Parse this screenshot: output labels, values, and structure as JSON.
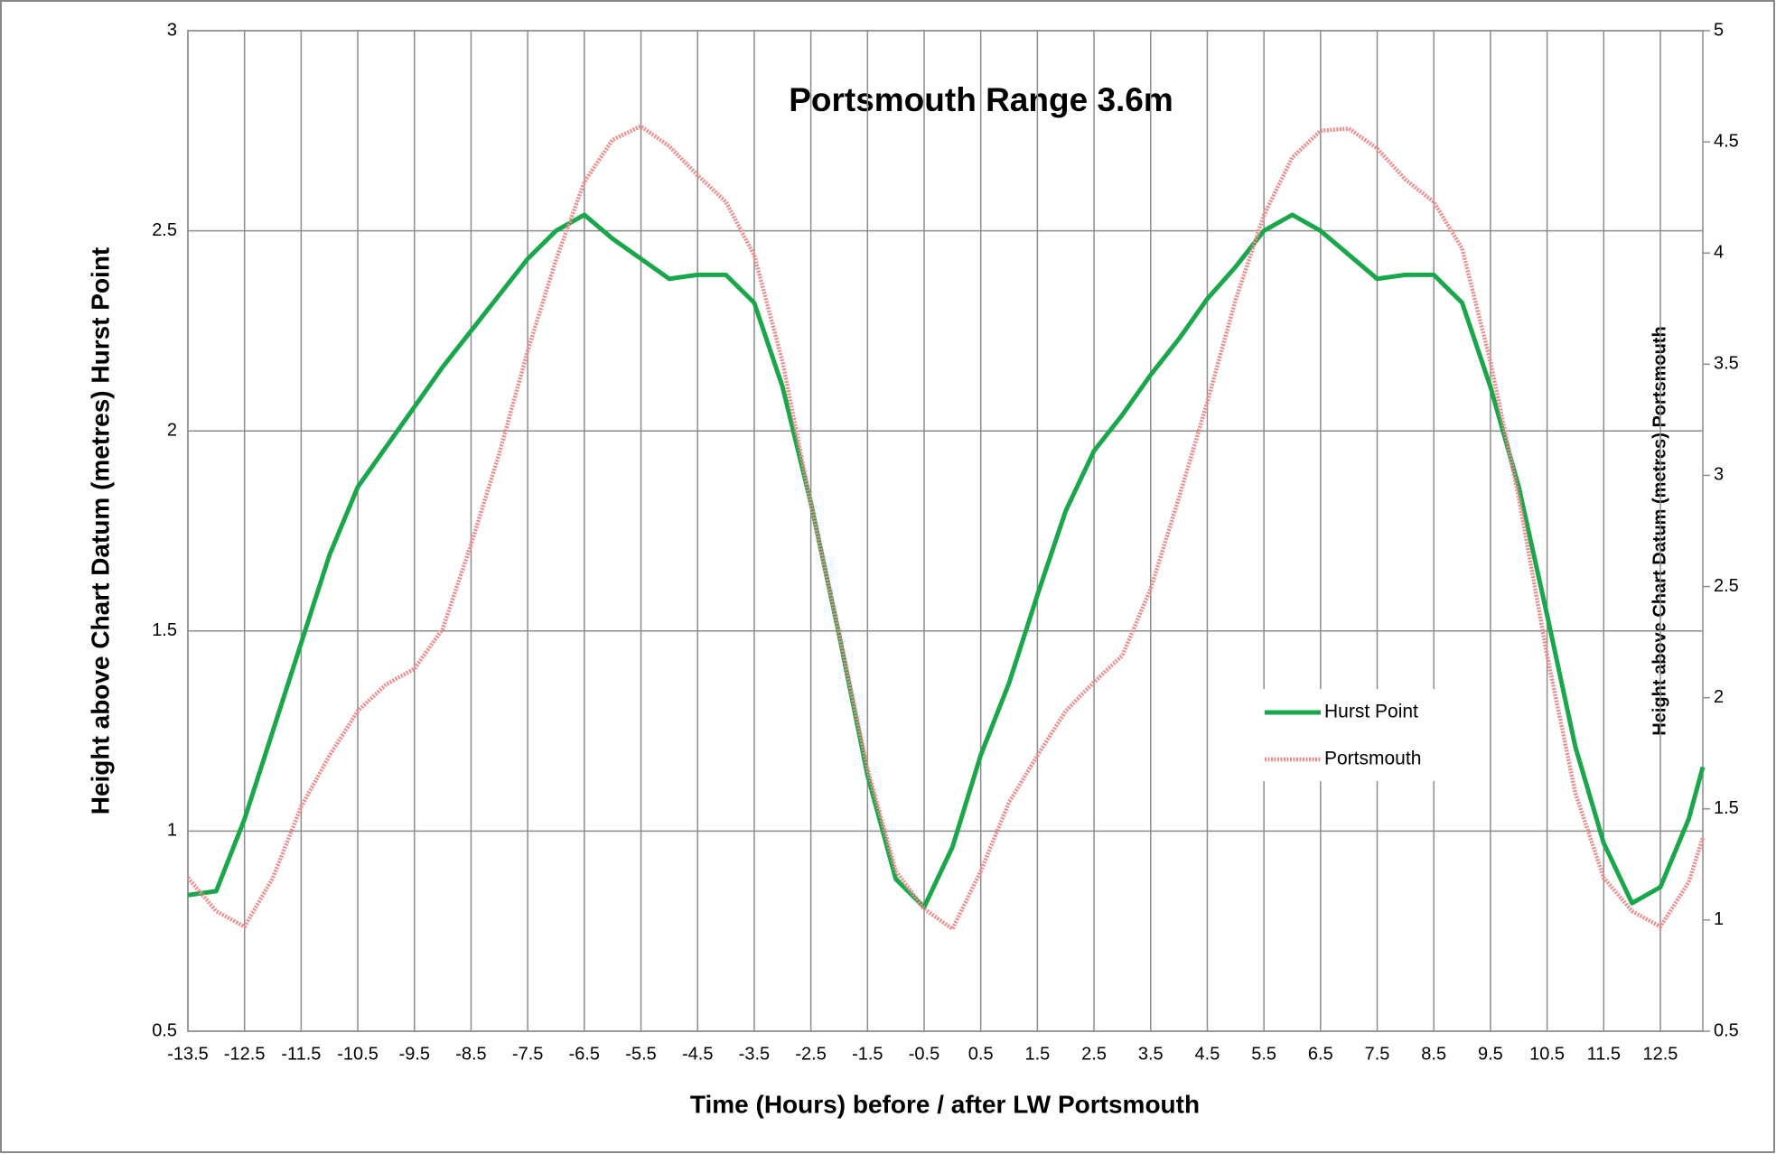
{
  "chart_data": {
    "type": "line",
    "title": "Portsmouth Range 3.6m",
    "x_label": "Time (Hours) before / after LW Portsmouth",
    "y_label": "Height above Chart Datum (metres) Hurst Point",
    "y2_label": "Height above Chart Datum (metres) Portsmouth",
    "x": [
      -13.5,
      -13,
      -12.5,
      -12,
      -11.5,
      -11,
      -10.5,
      -10,
      -9.5,
      -9,
      -8.5,
      -8,
      -7.5,
      -7,
      -6.5,
      -6,
      -5.5,
      -5,
      -4.5,
      -4,
      -3.5,
      -3,
      -2.5,
      -2,
      -1.5,
      -1,
      -0.5,
      0,
      0.5,
      1,
      1.5,
      2,
      2.5,
      3,
      3.5,
      4,
      4.5,
      5,
      5.5,
      6,
      6.5,
      7,
      7.5,
      8,
      8.5,
      9,
      9.5,
      10,
      10.5,
      11,
      11.5,
      12,
      12.5,
      13,
      13.25
    ],
    "series": [
      {
        "name": "Hurst Point",
        "color": "#1aa64a",
        "values": [
          0.84,
          0.85,
          1.03,
          1.25,
          1.47,
          1.69,
          1.86,
          1.96,
          2.06,
          2.16,
          2.25,
          2.34,
          2.43,
          2.5,
          2.54,
          2.48,
          2.43,
          2.38,
          2.39,
          2.39,
          2.32,
          2.11,
          1.82,
          1.49,
          1.14,
          0.88,
          0.81,
          0.96,
          1.19,
          1.37,
          1.59,
          1.8,
          1.95,
          2.04,
          2.14,
          2.23,
          2.33,
          2.41,
          2.5,
          2.54,
          2.5,
          2.44,
          2.38,
          2.39,
          2.39,
          2.32,
          2.11,
          1.86,
          1.54,
          1.21,
          0.97,
          0.82,
          0.86,
          1.03,
          1.16
        ]
      },
      {
        "name": "Portsmouth",
        "color": "#f08a8a",
        "axis": "y2",
        "values": [
          1.19,
          1.04,
          0.97,
          1.19,
          1.51,
          1.74,
          1.94,
          2.06,
          2.13,
          2.31,
          2.69,
          3.1,
          3.56,
          3.97,
          4.32,
          4.51,
          4.57,
          4.48,
          4.35,
          4.23,
          3.99,
          3.51,
          2.87,
          2.29,
          1.68,
          1.22,
          1.05,
          0.96,
          1.22,
          1.53,
          1.74,
          1.94,
          2.07,
          2.19,
          2.49,
          2.9,
          3.33,
          3.79,
          4.17,
          4.43,
          4.55,
          4.56,
          4.47,
          4.33,
          4.23,
          4.02,
          3.51,
          2.9,
          2.19,
          1.57,
          1.19,
          1.04,
          0.97,
          1.17,
          1.37
        ]
      }
    ],
    "xlim": [
      -13.5,
      13.25
    ],
    "xticks": [
      -13.5,
      -12.5,
      -11.5,
      -10.5,
      -9.5,
      -8.5,
      -7.5,
      -6.5,
      -5.5,
      -4.5,
      -3.5,
      -2.5,
      -1.5,
      -0.5,
      0.5,
      1.5,
      2.5,
      3.5,
      4.5,
      5.5,
      6.5,
      7.5,
      8.5,
      9.5,
      10.5,
      11.5,
      12.5
    ],
    "ylim": [
      0.5,
      3
    ],
    "yticks": [
      0.5,
      1,
      1.5,
      2,
      2.5,
      3
    ],
    "y2lim": [
      0.5,
      5
    ],
    "y2ticks": [
      0.5,
      1,
      1.5,
      2,
      2.5,
      3,
      3.5,
      4,
      4.5,
      5
    ],
    "grid": true,
    "legend": "center right"
  }
}
